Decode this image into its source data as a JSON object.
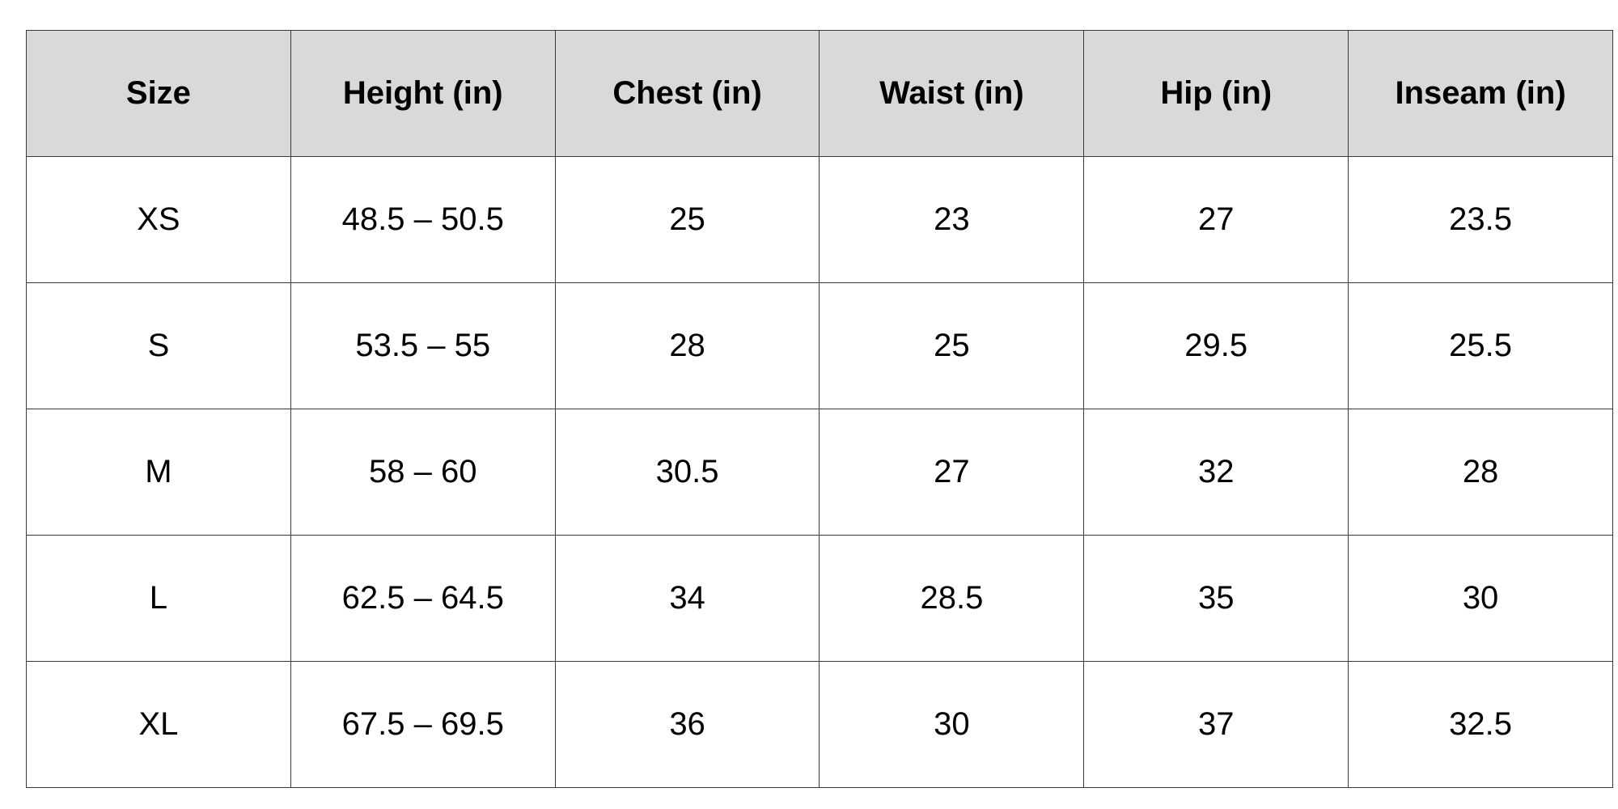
{
  "table": {
    "headers": [
      "Size",
      "Height (in)",
      "Chest (in)",
      "Waist (in)",
      "Hip (in)",
      "Inseam (in)"
    ],
    "rows": [
      [
        "XS",
        "48.5 – 50.5",
        "25",
        "23",
        "27",
        "23.5"
      ],
      [
        "S",
        "53.5 – 55",
        "28",
        "25",
        "29.5",
        "25.5"
      ],
      [
        "M",
        "58 – 60",
        "30.5",
        "27",
        "32",
        "28"
      ],
      [
        "L",
        "62.5 – 64.5",
        "34",
        "28.5",
        "35",
        "30"
      ],
      [
        "XL",
        "67.5 – 69.5",
        "36",
        "30",
        "37",
        "32.5"
      ]
    ]
  },
  "colors": {
    "header_background": "#d9d9d9",
    "border": "#3a3a3a",
    "text": "#000000"
  }
}
